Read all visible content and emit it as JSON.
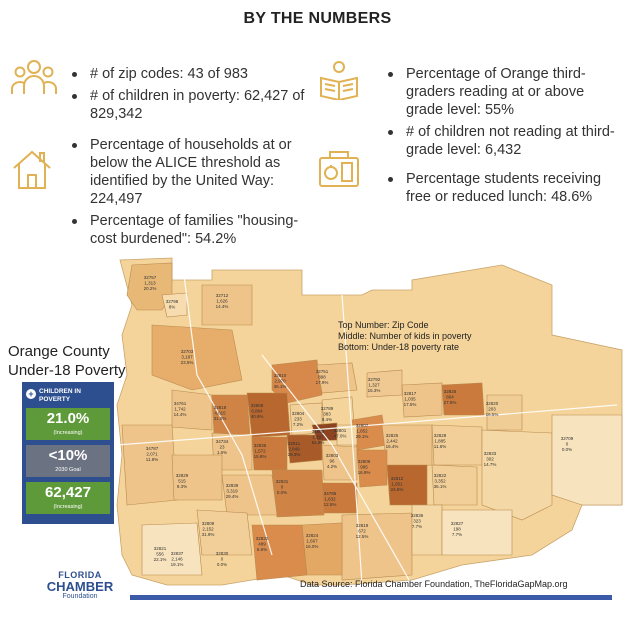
{
  "title": "BY THE NUMBERS",
  "icons": {
    "people": "people-icon",
    "house": "house-icon",
    "reading": "reading-icon",
    "lunch": "lunch-tray-icon",
    "accent_color": "#e0b253"
  },
  "left_stats": [
    "# of zip codes:  43 of 983",
    "# of children in poverty: 62,427 of 829,342"
  ],
  "left_stats_2": [
    "Percentage of households at or below the ALICE threshold as identified by the United Way: 224,497",
    "Percentage of families \"housing-cost burdened\": 54.2%"
  ],
  "right_stats": [
    "Percentage of Orange third-graders reading at or above grade level: 55%",
    "# of children not reading at third-grade level: 6,432"
  ],
  "right_stats_2": [
    "Percentage students receiving free or reduced lunch: 48.6%"
  ],
  "map": {
    "legend": {
      "top": "Top Number:  Zip Code",
      "middle": "Middle:  Number of kids in poverty",
      "bottom": "Bottom:  Under-18 poverty rate"
    },
    "source": "Data Source:  Florida Chamber Foundation, TheFloridaGapMap.org",
    "zip_labels": [
      {
        "zip": "32757",
        "kids": "1,313",
        "rate": "20.2%"
      },
      {
        "zip": "32798",
        "kids": "",
        "rate": "8%"
      },
      {
        "zip": "32712",
        "kids": "1,626",
        "rate": "14.4%"
      },
      {
        "zip": "32703",
        "kids": "3,187",
        "rate": "23.5%"
      },
      {
        "zip": "32810",
        "kids": "2,970",
        "rate": "36.1%"
      },
      {
        "zip": "32751",
        "kids": "898",
        "rate": "17.9%"
      },
      {
        "zip": "32792",
        "kids": "1,327",
        "rate": "15.3%"
      },
      {
        "zip": "32817",
        "kids": "1,035",
        "rate": "17.5%"
      },
      {
        "zip": "32826",
        "kids": "804",
        "rate": "27.9%"
      },
      {
        "zip": "32820",
        "kids": "203",
        "rate": "16.5%"
      },
      {
        "zip": "34761",
        "kids": "1,742",
        "rate": "14.4%"
      },
      {
        "zip": "32818",
        "kids": "4,015",
        "rate": "31.5%"
      },
      {
        "zip": "32808",
        "kids": "6,864",
        "rate": "40.9%"
      },
      {
        "zip": "32804",
        "kids": "233",
        "rate": "7.2%"
      },
      {
        "zip": "32789",
        "kids": "383",
        "rate": "8.4%"
      },
      {
        "zip": "32807",
        "kids": "1,852",
        "rate": "29.1%"
      },
      {
        "zip": "32825",
        "kids": "2,442",
        "rate": "16.4%"
      },
      {
        "zip": "32828",
        "kids": "1,885",
        "rate": "11.6%"
      },
      {
        "zip": "32833",
        "kids": "302",
        "rate": "14.7%"
      },
      {
        "zip": "32709",
        "kids": "0",
        "rate": "0.0%"
      },
      {
        "zip": "34787",
        "kids": "2,071",
        "rate": "11.8%"
      },
      {
        "zip": "34734",
        "kids": "23",
        "rate": "1.6%"
      },
      {
        "zip": "32835",
        "kids": "1,572",
        "rate": "15.8%"
      },
      {
        "zip": "32811",
        "kids": "2,849",
        "rate": "29.3%"
      },
      {
        "zip": "32805",
        "kids": "1,197",
        "rate": "52.9%"
      },
      {
        "zip": "32801",
        "kids": "",
        "rate": "47.0%"
      },
      {
        "zip": "32803",
        "kids": "96",
        "rate": "4.2%"
      },
      {
        "zip": "32806",
        "kids": "995",
        "rate": "16.9%"
      },
      {
        "zip": "32812",
        "kids": "1,651",
        "rate": "24.6%"
      },
      {
        "zip": "32822",
        "kids": "3,352",
        "rate": "36.1%"
      },
      {
        "zip": "32829",
        "kids": "515",
        "rate": "9.3%"
      },
      {
        "zip": "32831",
        "kids": "0",
        "rate": "0.0%"
      },
      {
        "zip": "34786",
        "kids": "1,632",
        "rate": "12.5%"
      },
      {
        "zip": "32839",
        "kids": "3,319",
        "rate": "29.4%"
      },
      {
        "zip": "32809",
        "kids": "2,152",
        "rate": "31.9%"
      },
      {
        "zip": "32819",
        "kids": "672",
        "rate": "12.5%"
      },
      {
        "zip": "32836",
        "kids": "323",
        "rate": "7.7%"
      },
      {
        "zip": "32827",
        "kids": "198",
        "rate": "7.7%"
      },
      {
        "zip": "32832",
        "kids": "489",
        "rate": "6.6%"
      },
      {
        "zip": "32824",
        "kids": "1,667",
        "rate": "16.0%"
      },
      {
        "zip": "32821",
        "kids": "556",
        "rate": "22.1%"
      },
      {
        "zip": "32837",
        "kids": "2,146",
        "rate": "19.1%"
      },
      {
        "zip": "32830",
        "kids": "0",
        "rate": "0.0%"
      }
    ]
  },
  "side_panel": {
    "title": "Orange County Under-18 Poverty",
    "card_heading": "CHILDREN IN POVERTY",
    "stat1_value": "21.0%",
    "stat1_note": "(Increasing)",
    "stat2_value": "<10%",
    "stat2_note": "2030 Goal",
    "stat3_value": "62,427",
    "stat3_note": "(Increasing)",
    "colors": {
      "card": "#2d4f8f",
      "green": "#5f9a3a",
      "gray": "#6b7282"
    }
  },
  "logo": {
    "line1": "FLORIDA",
    "line2": "CHAMBER",
    "line3": "Foundation"
  }
}
